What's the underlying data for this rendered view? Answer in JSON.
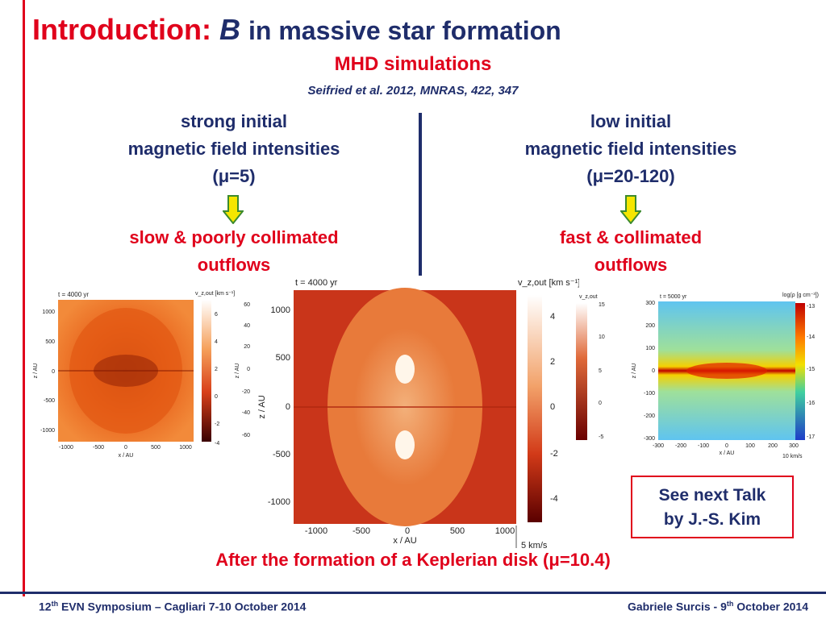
{
  "title": {
    "intro": "Introduction:",
    "b": "B",
    "rest": "in massive star formation"
  },
  "subtitle": "MHD simulations",
  "citation": "Seifried et al. 2012, MNRAS, 422, 347",
  "left_column": {
    "line1": "strong initial",
    "line2": "magnetic field intensities",
    "line3": "(μ=5)",
    "result1": "slow & poorly collimated",
    "result2": "outflows"
  },
  "right_column": {
    "line1": "low initial",
    "line2": "magnetic field intensities",
    "line3": "(μ=20-120)",
    "result1": "fast & collimated",
    "result2": "outflows"
  },
  "colors": {
    "accent_red": "#e0001b",
    "navy": "#1f2d6b",
    "arrow_fill": "#f5e600",
    "arrow_stroke": "#3c8a2e"
  },
  "panel_left": {
    "time": "t = 4000 yr",
    "cbar_label": "v_z,out [km s⁻¹]",
    "xlabel": "x / AU",
    "ylabel": "z / AU",
    "xticks": [
      "-1000",
      "-500",
      "0",
      "500",
      "1000"
    ],
    "yticks": [
      "1000",
      "500",
      "0",
      "-500",
      "-1000"
    ],
    "cbar_ticks": [
      "6",
      "4",
      "2",
      "0",
      "-2",
      "-4"
    ],
    "extra_ticks": [
      "60",
      "40",
      "20",
      "0",
      "-20",
      "-40",
      "-60"
    ],
    "extra_label": "z / AU"
  },
  "panel_center": {
    "time": "t = 4000 yr",
    "cbar_label": "v_z,out [km s⁻¹]",
    "xlabel": "x / AU",
    "ylabel": "z / AU",
    "xticks": [
      "-1000",
      "-500",
      "0",
      "500",
      "1000"
    ],
    "yticks": [
      "1000",
      "500",
      "0",
      "-500",
      "-1000"
    ],
    "cbar_ticks": [
      "4",
      "2",
      "0",
      "-2",
      "-4"
    ],
    "scale_label": "5 km/s"
  },
  "panel_right": {
    "time": "t = 5000 yr",
    "cbar_label": "log(ρ [g cm⁻³])",
    "xlabel": "x / AU",
    "ylabel": "z / AU",
    "xticks": [
      "-300",
      "-200",
      "-100",
      "0",
      "100",
      "200",
      "300"
    ],
    "yticks": [
      "300",
      "200",
      "100",
      "0",
      "-100",
      "-200",
      "-300"
    ],
    "cbar_ticks": [
      "-13",
      "-14",
      "-15",
      "-16",
      "-17"
    ],
    "scale_label": "10 km/s",
    "vcbar_label": "v_z,out",
    "vcbar_ticks": [
      "15",
      "10",
      "5",
      "0",
      "-5"
    ]
  },
  "talk_box": {
    "line1": "See next Talk",
    "line2": "by J.-S. Kim"
  },
  "kepler_caption": "After the formation of a Keplerian disk (μ=10.4)",
  "footer": {
    "left_pre": "12",
    "left_sup": "th",
    "left_post": " EVN Symposium – Cagliari 7-10 October 2014",
    "right_pre": "Gabriele Surcis -  9",
    "right_sup": "th",
    "right_post": " October 2014"
  }
}
